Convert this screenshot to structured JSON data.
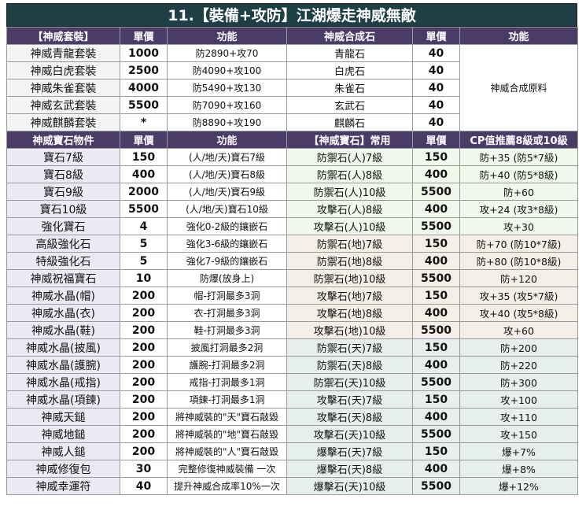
{
  "title": "11.【裝備+攻防】江湖爆走神威無敵",
  "colors": {
    "title_bg": "#1e3f46",
    "header_bg": "#4a3b67",
    "header_text": "#ffffff"
  },
  "section1": {
    "headers": [
      "【神威套裝】",
      "單價",
      "功能",
      "神威合成石",
      "單價",
      "功能"
    ],
    "rows": [
      [
        "神威青龍套裝",
        "1000",
        "防2890+攻70",
        "青龍石",
        "40",
        ""
      ],
      [
        "神威白虎套裝",
        "2500",
        "防4090+攻100",
        "白虎石",
        "40",
        ""
      ],
      [
        "神威朱雀套裝",
        "4000",
        "防5490+攻130",
        "朱雀石",
        "40",
        ""
      ],
      [
        "神威玄武套裝",
        "5500",
        "防7090+攻160",
        "玄武石",
        "40",
        ""
      ],
      [
        "神威麒麟套裝",
        "*",
        "防8890+攻190",
        "麒麟石",
        "40",
        ""
      ]
    ],
    "merged_note": "神威合成原料"
  },
  "section2": {
    "headers": [
      "神威寶石物件",
      "單價",
      "功能",
      "【神威寶石】常用",
      "單價",
      "CP值推薦8級或10級"
    ],
    "rows": [
      [
        "寶石7級",
        "150",
        "(人/地/天)寶石7級",
        "防禦石(人)7級",
        "150",
        "防+35 (防5*7級)"
      ],
      [
        "寶石8級",
        "400",
        "(人/地/天)寶石8級",
        "防禦石(人)8級",
        "400",
        "防+40 (防5*8級)"
      ],
      [
        "寶石9級",
        "2000",
        "(人/地/天)寶石9級",
        "防禦石(人)10級",
        "5500",
        "防+60"
      ],
      [
        "寶石10級",
        "5500",
        "(人/地/天)寶石10級",
        "攻擊石(人)8級",
        "400",
        "攻+24 (攻3*8級)"
      ],
      [
        "強化寶石",
        "4",
        "強化0-2級的鑲嵌石",
        "攻擊石(人)10級",
        "5500",
        "攻+30"
      ],
      [
        "高級強化石",
        "5",
        "強化3-6級的鑲嵌石",
        "防禦石(地)7級",
        "150",
        "防+70 (防10*7級)"
      ],
      [
        "特級強化石",
        "5",
        "強化7-9級的鑲嵌石",
        "防禦石(地)8級",
        "400",
        "防+80 (防10*8級)"
      ],
      [
        "神威祝福寶石",
        "10",
        "防爆(放身上)",
        "防禦石(地)10級",
        "5500",
        "防+120"
      ],
      [
        "神威水晶(帽)",
        "200",
        "帽-打洞最多3洞",
        "攻擊石(地)7級",
        "150",
        "攻+35 (攻5*7級)"
      ],
      [
        "神威水晶(衣)",
        "200",
        "衣-打洞最多3洞",
        "攻擊石(地)8級",
        "400",
        "攻+40 (攻5*8級)"
      ],
      [
        "神威水晶(鞋)",
        "200",
        "鞋-打洞最多3洞",
        "攻擊石(地)10級",
        "5500",
        "攻+60"
      ],
      [
        "神威水晶(披風)",
        "200",
        "披風打洞最多2洞",
        "防禦石(天)7級",
        "150",
        "防+200"
      ],
      [
        "神威水晶(護腕)",
        "200",
        "護腕-打洞最多2洞",
        "防禦石(天)8級",
        "400",
        "防+220"
      ],
      [
        "神威水晶(戒指)",
        "200",
        "戒指-打洞最多1洞",
        "防禦石(天)10級",
        "5500",
        "防+300"
      ],
      [
        "神威水晶(項鍊)",
        "200",
        "項鍊-打洞最多1洞",
        "攻擊石(天)7級",
        "150",
        "攻+100"
      ],
      [
        "神威天鎚",
        "200",
        "將神威裝的\"天\"寶石敲毀",
        "攻擊石(天)8級",
        "400",
        "攻+110"
      ],
      [
        "神威地鎚",
        "200",
        "將神威裝的\"地\"寶石敲毀",
        "攻擊石(天)10級",
        "5500",
        "攻+150"
      ],
      [
        "神威人鎚",
        "200",
        "將神威裝的\"人\"寶石敲毀",
        "爆擊石(天)7級",
        "150",
        "爆+7%"
      ],
      [
        "神威修復包",
        "30",
        "完整修復神威裝備 一次",
        "爆擊石(天)8級",
        "400",
        "爆+8%"
      ],
      [
        "神威幸運符",
        "40",
        "提升神威合成率10%一次",
        "爆擊石(天)10級",
        "5500",
        "爆+12%"
      ]
    ]
  }
}
